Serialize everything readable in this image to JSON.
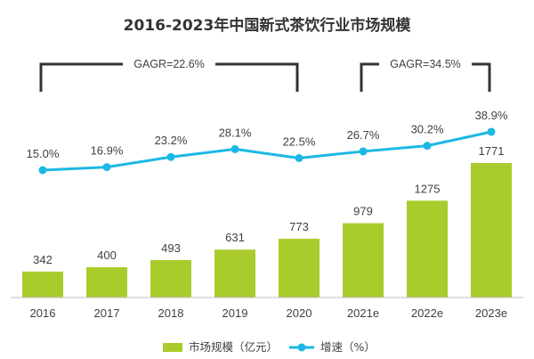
{
  "chart_data": {
    "type": "bar",
    "title": "2016-2023年中国新式茶饮行业市场规模",
    "categories": [
      "2016",
      "2017",
      "2018",
      "2019",
      "2020",
      "2021e",
      "2022e",
      "2023e"
    ],
    "series": [
      {
        "name": "市场规模（亿元）",
        "type": "bar",
        "values": [
          342,
          400,
          493,
          631,
          773,
          979,
          1275,
          1771
        ],
        "labels": [
          "342",
          "400",
          "493",
          "631",
          "773",
          "979",
          "1275",
          "1771"
        ]
      },
      {
        "name": "增速（%）",
        "type": "line",
        "values": [
          15.0,
          16.9,
          23.2,
          28.1,
          22.5,
          26.7,
          30.2,
          38.9
        ],
        "labels": [
          "15.0%",
          "16.9%",
          "23.2%",
          "28.1%",
          "22.5%",
          "26.7%",
          "30.2%",
          "38.9%"
        ]
      }
    ],
    "annotations": [
      {
        "text": "GAGR=22.6%",
        "from": "2016",
        "to": "2020"
      },
      {
        "text": "GAGR=34.5%",
        "from": "2021e",
        "to": "2023e"
      }
    ],
    "legend_position": "bottom-center",
    "grid": false,
    "colors": {
      "bar": "#a9cc2c",
      "line": "#1cb8e5",
      "bracket": "#333333",
      "text": "#404040"
    }
  }
}
